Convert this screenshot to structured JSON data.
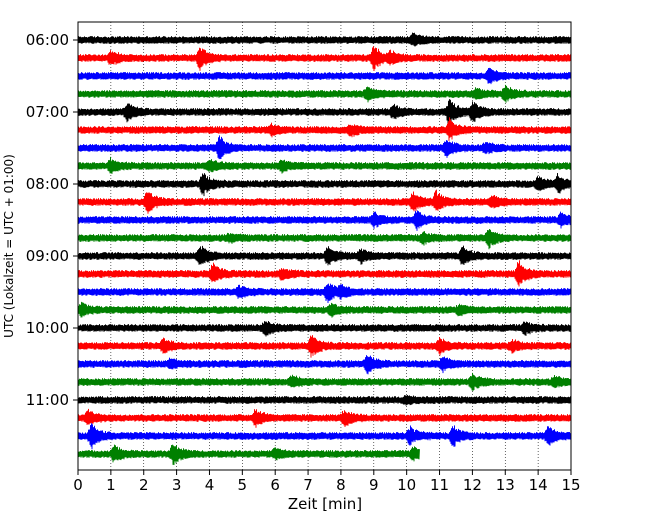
{
  "chart_data": {
    "type": "line",
    "title": "",
    "xlabel": "Zeit  [min]",
    "ylabel": "UTC (Lokalzeit = UTC + 01:00)",
    "xlim": [
      0,
      15
    ],
    "x_ticks": [
      "0",
      "1",
      "2",
      "3",
      "4",
      "5",
      "6",
      "7",
      "8",
      "9",
      "10",
      "11",
      "12",
      "13",
      "14",
      "15"
    ],
    "y_ticks": [
      "06:00",
      "07:00",
      "08:00",
      "09:00",
      "10:00",
      "11:00"
    ],
    "grid": "vertical dotted",
    "color_cycle": [
      "#000000",
      "#ff0000",
      "#0000ff",
      "#008000"
    ],
    "traces": [
      {
        "start": "06:00",
        "end_min": 15,
        "events": [
          [
            10.2,
            0.5
          ]
        ]
      },
      {
        "start": "06:15",
        "end_min": 15,
        "events": [
          [
            1.0,
            0.6
          ],
          [
            3.7,
            1.0
          ],
          [
            9.0,
            1.1
          ],
          [
            9.5,
            0.5
          ]
        ]
      },
      {
        "start": "06:30",
        "end_min": 15,
        "events": [
          [
            12.5,
            0.8
          ]
        ]
      },
      {
        "start": "06:45",
        "end_min": 15,
        "events": [
          [
            8.8,
            0.6
          ],
          [
            12.1,
            0.4
          ],
          [
            13.0,
            0.7
          ]
        ]
      },
      {
        "start": "07:00",
        "end_min": 15,
        "events": [
          [
            1.5,
            0.8
          ],
          [
            9.6,
            0.6
          ],
          [
            11.3,
            1.2
          ],
          [
            12.0,
            1.0
          ]
        ]
      },
      {
        "start": "07:15",
        "end_min": 15,
        "events": [
          [
            5.9,
            0.4
          ],
          [
            8.3,
            0.5
          ],
          [
            11.3,
            1.0
          ]
        ]
      },
      {
        "start": "07:30",
        "end_min": 15,
        "events": [
          [
            4.3,
            1.1
          ],
          [
            11.2,
            0.8
          ],
          [
            12.4,
            0.5
          ]
        ]
      },
      {
        "start": "07:45",
        "end_min": 15,
        "events": [
          [
            1.0,
            0.6
          ],
          [
            4.0,
            0.5
          ],
          [
            6.2,
            0.5
          ]
        ]
      },
      {
        "start": "08:00",
        "end_min": 15,
        "events": [
          [
            3.8,
            1.1
          ],
          [
            14.0,
            0.6
          ],
          [
            14.6,
            0.8
          ]
        ]
      },
      {
        "start": "08:15",
        "end_min": 15,
        "events": [
          [
            2.1,
            1.1
          ],
          [
            10.2,
            0.9
          ],
          [
            10.9,
            1.0
          ],
          [
            12.6,
            0.6
          ]
        ]
      },
      {
        "start": "08:30",
        "end_min": 15,
        "events": [
          [
            9.0,
            0.6
          ],
          [
            10.3,
            0.8
          ],
          [
            14.7,
            0.6
          ]
        ]
      },
      {
        "start": "08:45",
        "end_min": 15,
        "events": [
          [
            4.6,
            0.3
          ],
          [
            10.5,
            0.5
          ],
          [
            12.5,
            0.9
          ]
        ]
      },
      {
        "start": "09:00",
        "end_min": 15,
        "events": [
          [
            3.7,
            1.0
          ],
          [
            7.6,
            0.8
          ],
          [
            8.6,
            0.6
          ],
          [
            11.7,
            0.8
          ]
        ]
      },
      {
        "start": "09:15",
        "end_min": 15,
        "events": [
          [
            4.1,
            0.9
          ],
          [
            6.2,
            0.5
          ],
          [
            13.4,
            1.2
          ]
        ]
      },
      {
        "start": "09:30",
        "end_min": 15,
        "events": [
          [
            4.9,
            0.5
          ],
          [
            7.6,
            1.0
          ],
          [
            8.0,
            0.5
          ]
        ]
      },
      {
        "start": "09:45",
        "end_min": 15,
        "events": [
          [
            0.1,
            0.6
          ],
          [
            7.7,
            0.5
          ],
          [
            11.6,
            0.4
          ]
        ]
      },
      {
        "start": "10:00",
        "end_min": 15,
        "events": [
          [
            5.7,
            0.7
          ],
          [
            13.6,
            0.5
          ]
        ]
      },
      {
        "start": "10:15",
        "end_min": 15,
        "events": [
          [
            2.6,
            0.6
          ],
          [
            7.1,
            1.0
          ],
          [
            11.0,
            0.7
          ],
          [
            13.2,
            0.5
          ]
        ]
      },
      {
        "start": "10:30",
        "end_min": 15,
        "events": [
          [
            2.8,
            0.4
          ],
          [
            8.8,
            0.9
          ],
          [
            11.1,
            0.6
          ]
        ]
      },
      {
        "start": "10:45",
        "end_min": 15,
        "events": [
          [
            6.5,
            0.5
          ],
          [
            12.0,
            0.7
          ],
          [
            14.5,
            0.5
          ]
        ]
      },
      {
        "start": "11:00",
        "end_min": 15,
        "events": [
          [
            10.0,
            0.3
          ]
        ]
      },
      {
        "start": "11:15",
        "end_min": 15,
        "events": [
          [
            0.3,
            0.6
          ],
          [
            5.4,
            0.8
          ],
          [
            8.1,
            0.7
          ]
        ]
      },
      {
        "start": "11:30",
        "end_min": 15,
        "events": [
          [
            0.4,
            1.1
          ],
          [
            10.1,
            0.8
          ],
          [
            11.4,
            1.0
          ],
          [
            14.3,
            0.9
          ]
        ]
      },
      {
        "start": "11:45",
        "end_min": 10.4,
        "events": [
          [
            1.1,
            0.7
          ],
          [
            2.9,
            1.0
          ],
          [
            6.0,
            0.4
          ],
          [
            10.2,
            0.6
          ]
        ]
      }
    ]
  }
}
